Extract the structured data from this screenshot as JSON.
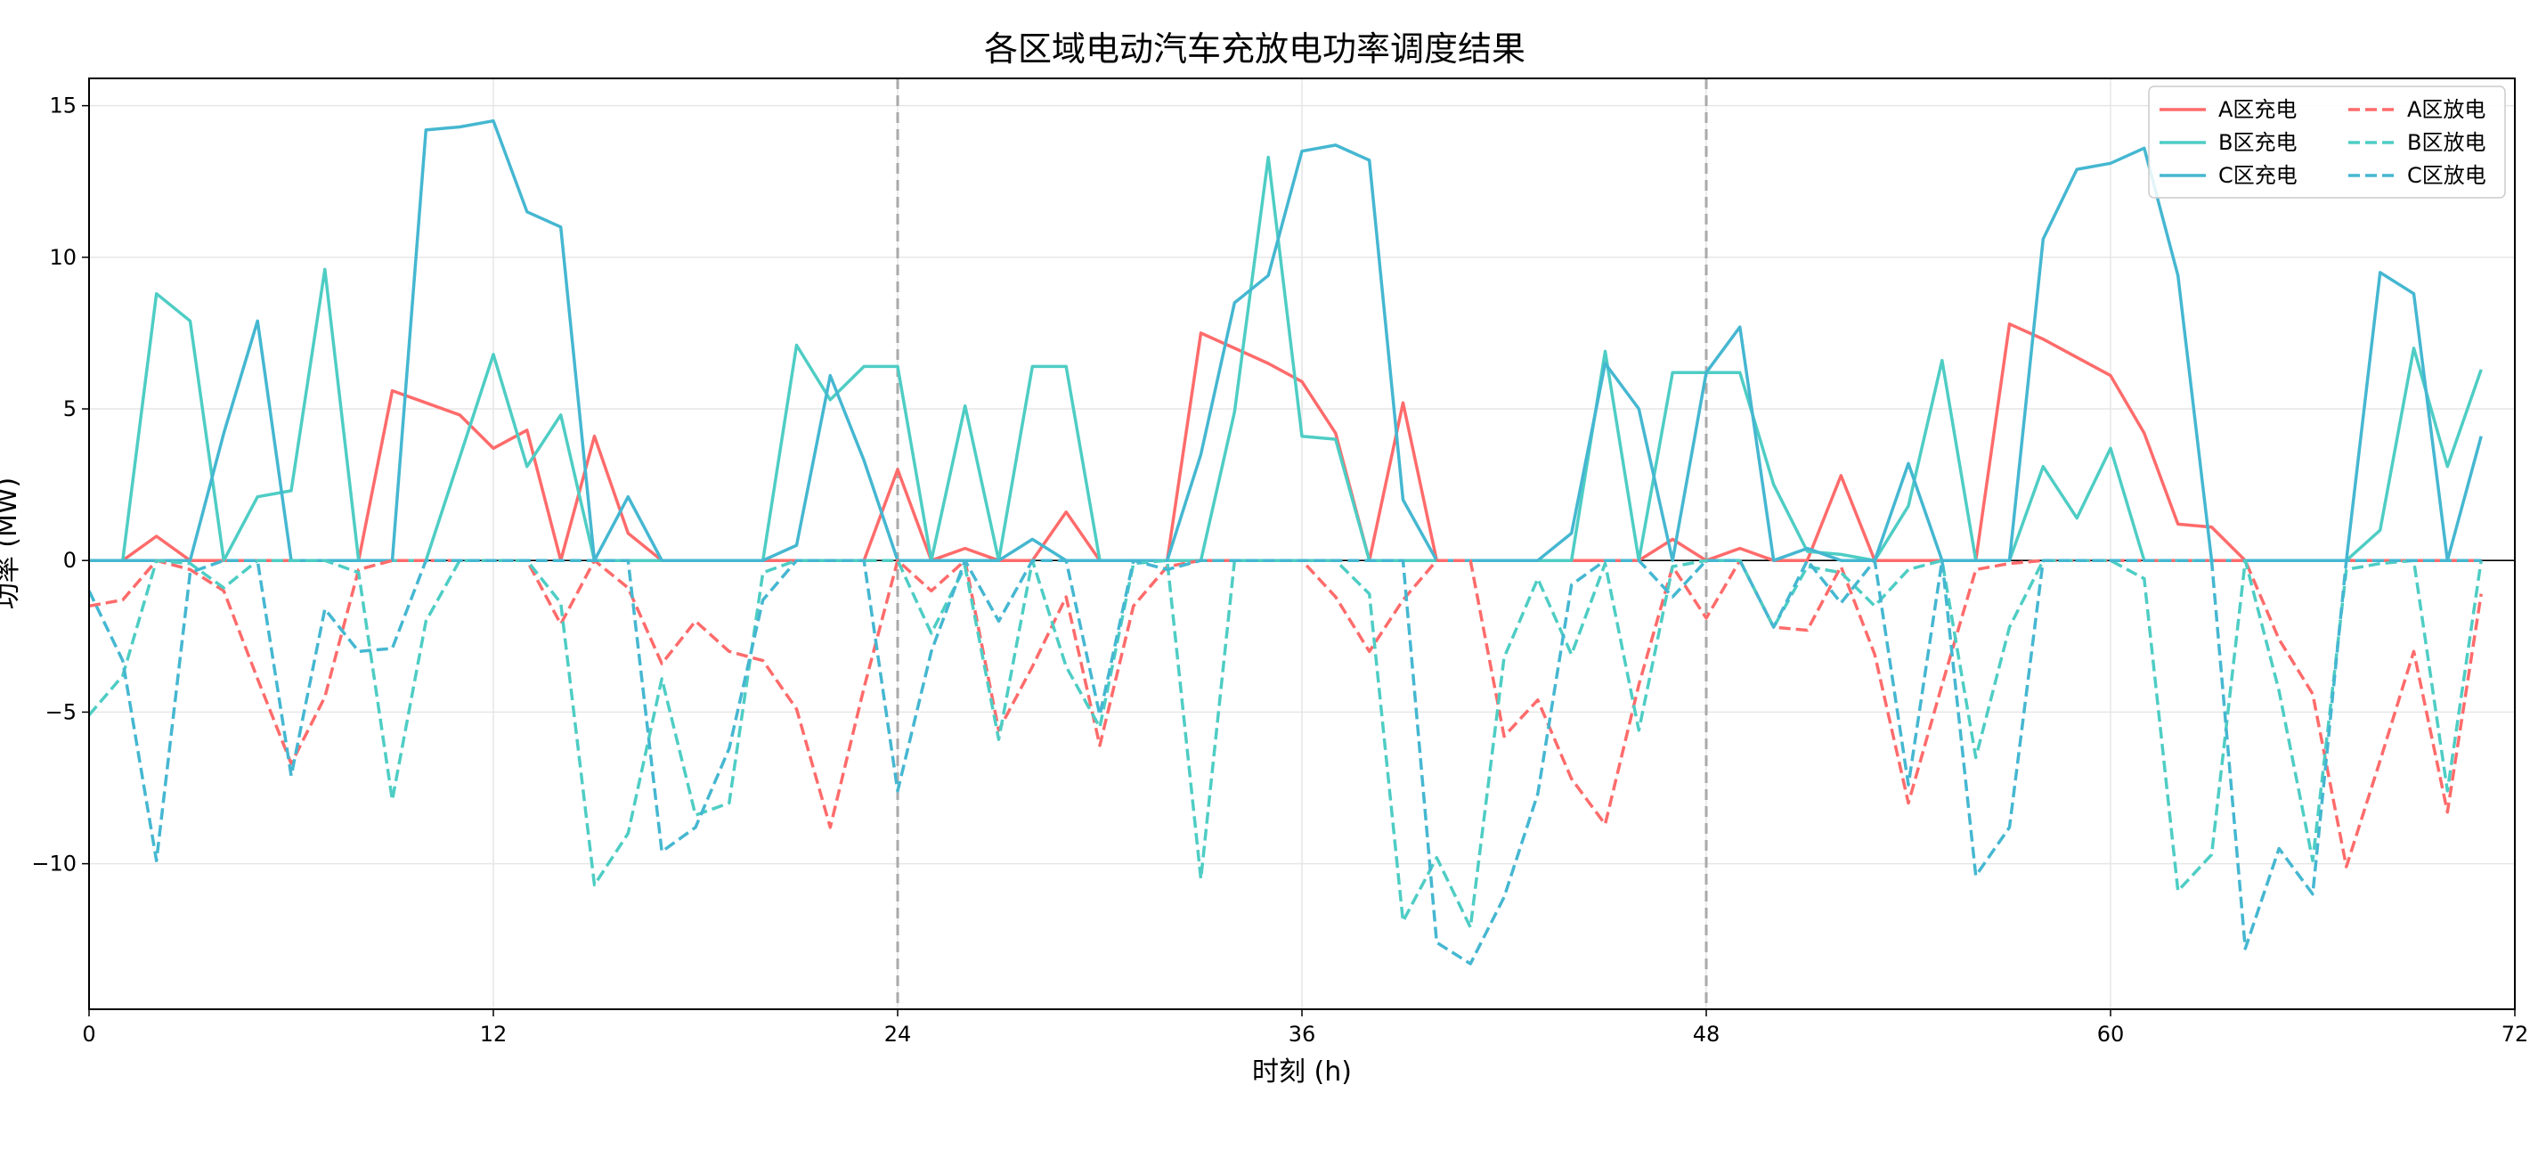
{
  "chart_data": {
    "type": "line",
    "title": "各区域电动汽车充放电功率调度结果",
    "xlabel": "时刻 (h)",
    "ylabel": "功率 (MW)",
    "xlim": [
      0,
      72
    ],
    "ylim": [
      -14.8,
      15.9
    ],
    "xticks": [
      0,
      12,
      24,
      36,
      48,
      60,
      72
    ],
    "yticks": [
      -10,
      -5,
      0,
      5,
      10,
      15
    ],
    "grid": true,
    "legend_position": "top-right",
    "vlines": [
      24,
      48
    ],
    "x": [
      0,
      1,
      2,
      3,
      4,
      5,
      6,
      7,
      8,
      9,
      10,
      11,
      12,
      13,
      14,
      15,
      16,
      17,
      18,
      19,
      20,
      21,
      22,
      23,
      24,
      25,
      26,
      27,
      28,
      29,
      30,
      31,
      32,
      33,
      34,
      35,
      36,
      37,
      38,
      39,
      40,
      41,
      42,
      43,
      44,
      45,
      46,
      47,
      48,
      49,
      50,
      51,
      52,
      53,
      54,
      55,
      56,
      57,
      58,
      59,
      60,
      61,
      62,
      63,
      64,
      65,
      66,
      67,
      68,
      69,
      70,
      71
    ],
    "colors": {
      "A": "#ff6b6b",
      "B": "#4ecdc4",
      "C": "#45b7d1",
      "vline": "#aaaaaa",
      "zero": "#000000"
    },
    "series": [
      {
        "name": "A区充电",
        "color": "#ff6b6b",
        "dash": false,
        "values": [
          0,
          0,
          0.8,
          0,
          0,
          0,
          0,
          0,
          0,
          5.6,
          5.2,
          4.8,
          3.7,
          4.3,
          0,
          4.1,
          0.9,
          0,
          0,
          0,
          0,
          0,
          0,
          0,
          3.0,
          0,
          0.4,
          0,
          0,
          1.6,
          0,
          0,
          0,
          7.5,
          7.0,
          6.5,
          5.9,
          4.2,
          0,
          5.2,
          0,
          0,
          0,
          0,
          0,
          0,
          0,
          0.7,
          0,
          0.4,
          0,
          0,
          2.8,
          0,
          0,
          0,
          0,
          7.8,
          7.3,
          6.7,
          6.1,
          4.2,
          1.2,
          1.1,
          0,
          0,
          0,
          0,
          0,
          0,
          0,
          0
        ]
      },
      {
        "name": "B区充电",
        "color": "#4ecdc4",
        "dash": false,
        "values": [
          0,
          0,
          8.8,
          7.9,
          0,
          2.1,
          2.3,
          9.6,
          0,
          0,
          0,
          3.4,
          6.8,
          3.1,
          4.8,
          0,
          0,
          0,
          0,
          0,
          0,
          7.1,
          5.3,
          6.4,
          6.4,
          0,
          5.1,
          0,
          6.4,
          6.4,
          0,
          0,
          0,
          0,
          4.9,
          13.3,
          4.1,
          4.0,
          0,
          0,
          0,
          0,
          0,
          0,
          0,
          6.9,
          0,
          6.2,
          6.2,
          6.2,
          2.5,
          0.3,
          0.2,
          0,
          1.8,
          6.6,
          0,
          0,
          3.1,
          1.4,
          3.7,
          0,
          0,
          0,
          0,
          0,
          0,
          0,
          1.0,
          7.0,
          3.1,
          6.3
        ]
      },
      {
        "name": "C区充电",
        "color": "#45b7d1",
        "dash": false,
        "values": [
          0,
          0,
          0,
          0,
          4.2,
          7.9,
          0,
          0,
          0,
          0,
          14.2,
          14.3,
          14.5,
          11.5,
          11.0,
          0,
          2.1,
          0,
          0,
          0,
          0,
          0.5,
          6.1,
          3.3,
          0,
          0,
          0,
          0,
          0.7,
          0,
          0,
          0,
          0,
          3.5,
          8.5,
          9.4,
          13.5,
          13.7,
          13.2,
          2.0,
          0,
          0,
          0,
          0,
          0.9,
          6.5,
          5.0,
          0,
          6.2,
          7.7,
          0,
          0.4,
          0,
          0,
          3.2,
          0,
          0,
          0,
          10.6,
          12.9,
          13.1,
          13.6,
          9.4,
          0,
          0,
          0,
          0,
          0,
          9.5,
          8.8,
          0,
          4.1
        ]
      },
      {
        "name": "A区放电",
        "color": "#ff6b6b",
        "dash": true,
        "values": [
          -1.5,
          -1.3,
          0,
          -0.3,
          -1.0,
          -3.9,
          -6.7,
          -4.5,
          -0.3,
          0,
          0,
          0,
          0,
          0,
          -2.1,
          0,
          -0.9,
          -3.4,
          -2.0,
          -3.0,
          -3.3,
          -4.9,
          -8.8,
          -4.2,
          0,
          -1.0,
          0,
          -5.6,
          -3.5,
          -1.2,
          -6.1,
          -1.5,
          -0.2,
          0,
          0,
          0,
          0,
          -1.2,
          -3.0,
          -1.3,
          0,
          0,
          -5.8,
          -4.6,
          -7.2,
          -8.7,
          -4.1,
          -0.2,
          -1.9,
          0,
          -2.2,
          -2.3,
          -0.2,
          -3.1,
          -8.0,
          -4.1,
          -0.3,
          -0.1,
          0,
          0,
          0,
          0,
          0,
          0,
          0,
          -2.6,
          -4.4,
          -10.1,
          -6.6,
          -3.0,
          -8.3,
          -1.1
        ]
      },
      {
        "name": "B区放电",
        "color": "#4ecdc4",
        "dash": true,
        "values": [
          -5.1,
          -3.8,
          0,
          -0.1,
          -0.9,
          0,
          0,
          0,
          -0.4,
          -7.9,
          -2.0,
          0,
          0,
          0,
          -1.4,
          -10.7,
          -9.0,
          -3.9,
          -8.4,
          -8.0,
          -0.4,
          0,
          0,
          0,
          0,
          -2.4,
          -0.2,
          -5.9,
          0,
          -3.5,
          -5.5,
          -0.1,
          0,
          -10.5,
          0,
          0,
          0,
          0,
          -1.1,
          -11.9,
          -9.8,
          -12.1,
          -3.2,
          -0.6,
          -3.1,
          -0.1,
          -5.6,
          -0.2,
          0,
          0,
          -2.2,
          -0.2,
          -0.4,
          -1.5,
          -0.3,
          0,
          -6.5,
          -2.2,
          0,
          0,
          0,
          -0.6,
          -10.9,
          -9.7,
          0,
          -4.3,
          -9.9,
          -0.3,
          -0.1,
          0,
          -7.6,
          0
        ]
      },
      {
        "name": "C区放电",
        "color": "#45b7d1",
        "dash": true,
        "values": [
          -1.0,
          -3.3,
          -9.9,
          -0.4,
          0,
          0,
          -7.1,
          -1.6,
          -3.0,
          -2.9,
          0,
          0,
          0,
          0,
          0,
          0,
          0,
          -9.6,
          -8.8,
          -6.2,
          -1.3,
          0,
          0,
          0,
          -7.6,
          -3.0,
          0,
          -2.0,
          0,
          0,
          -5.1,
          0,
          -0.3,
          0,
          0,
          0,
          0,
          0,
          0,
          0,
          -12.6,
          -13.3,
          -11.1,
          -7.7,
          -0.8,
          0,
          0,
          -1.2,
          0,
          0,
          -2.2,
          0,
          -1.4,
          0,
          -7.4,
          0,
          -10.4,
          -8.8,
          0,
          0,
          0,
          0,
          0,
          0,
          -12.8,
          -9.5,
          -11.0,
          0,
          0,
          0,
          0,
          0
        ]
      }
    ]
  }
}
